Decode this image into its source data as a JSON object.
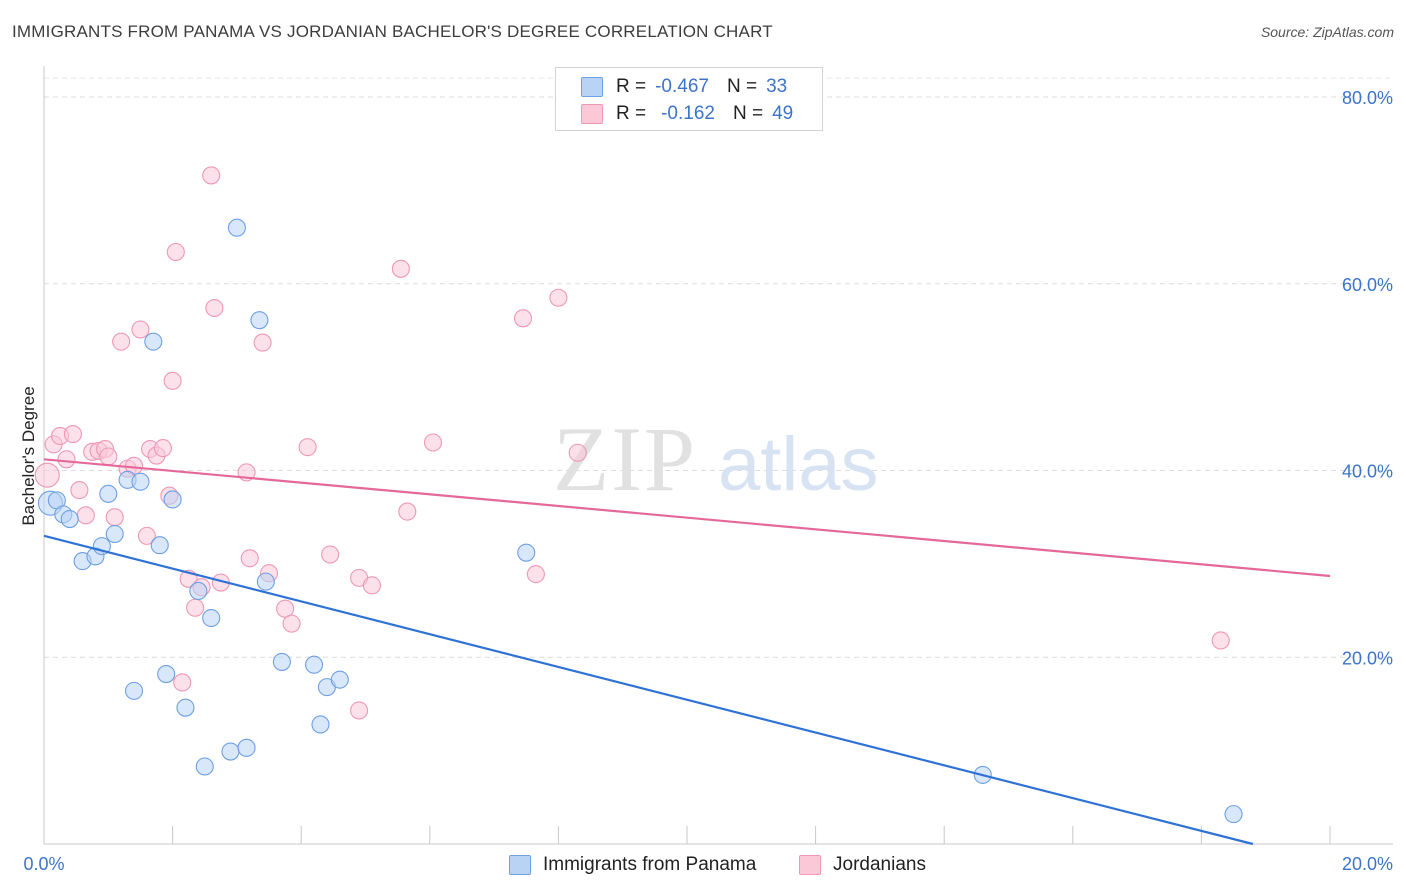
{
  "title": "IMMIGRANTS FROM PANAMA VS JORDANIAN BACHELOR'S DEGREE CORRELATION CHART",
  "source": "Source: ZipAtlas.com",
  "watermark": {
    "zip": "ZIP",
    "atlas": "atlas"
  },
  "legend": {
    "rows": [
      {
        "r_label": "R =",
        "r_value": "-0.467",
        "n_label": "N =",
        "n_value": "33",
        "color": "#6ea0e2"
      },
      {
        "r_label": "R =",
        "r_value": "-0.162",
        "n_label": "N =",
        "n_value": "49",
        "color": "#ee98b4"
      }
    ]
  },
  "chart_data": {
    "type": "scatter",
    "title": "IMMIGRANTS FROM PANAMA VS JORDANIAN BACHELOR'S DEGREE CORRELATION CHART",
    "xlabel": "",
    "ylabel": "Bachelor's Degree",
    "xlim": [
      0,
      20
    ],
    "ylim": [
      0,
      80
    ],
    "x_tick_labels": [
      "0.0%",
      "20.0%"
    ],
    "y_tick_labels": [
      "20.0%",
      "40.0%",
      "60.0%",
      "80.0%"
    ],
    "y_ticks": [
      20,
      40,
      60,
      80
    ],
    "grid": true,
    "legend_position": "top-center",
    "series": [
      {
        "name": "Immigrants from Panama",
        "color": "#6ea0e2",
        "fill": "#b9d3f5",
        "trend": {
          "x": [
            0,
            18.8
          ],
          "y": [
            33.0,
            0.0
          ],
          "color": "#2f72d6"
        },
        "points": [
          [
            0.1,
            36.5
          ],
          [
            0.2,
            36.8
          ],
          [
            0.3,
            35.3
          ],
          [
            0.4,
            34.8
          ],
          [
            0.6,
            30.3
          ],
          [
            0.8,
            30.8
          ],
          [
            0.9,
            31.9
          ],
          [
            1.0,
            37.5
          ],
          [
            1.1,
            33.2
          ],
          [
            1.3,
            39.0
          ],
          [
            1.4,
            16.4
          ],
          [
            1.5,
            38.8
          ],
          [
            1.7,
            53.8
          ],
          [
            1.8,
            32.0
          ],
          [
            1.9,
            18.2
          ],
          [
            2.0,
            36.9
          ],
          [
            2.2,
            14.6
          ],
          [
            2.4,
            27.1
          ],
          [
            2.5,
            8.3
          ],
          [
            2.6,
            24.2
          ],
          [
            2.9,
            9.9
          ],
          [
            3.0,
            66.0
          ],
          [
            3.15,
            10.3
          ],
          [
            3.35,
            56.1
          ],
          [
            3.45,
            28.1
          ],
          [
            3.7,
            19.5
          ],
          [
            4.2,
            19.2
          ],
          [
            4.3,
            12.8
          ],
          [
            4.4,
            16.8
          ],
          [
            4.6,
            17.6
          ],
          [
            7.5,
            31.2
          ],
          [
            14.6,
            7.4
          ],
          [
            18.5,
            3.2
          ]
        ]
      },
      {
        "name": "Jordanians",
        "color": "#ee98b4",
        "fill": "#fbc8d8",
        "trend": {
          "x": [
            0,
            20
          ],
          "y": [
            41.2,
            28.7
          ],
          "color": "#e4689a"
        },
        "points": [
          [
            0.05,
            39.5
          ],
          [
            0.15,
            42.8
          ],
          [
            0.25,
            43.7
          ],
          [
            0.35,
            41.2
          ],
          [
            0.45,
            43.9
          ],
          [
            0.55,
            37.9
          ],
          [
            0.65,
            35.2
          ],
          [
            0.75,
            42.0
          ],
          [
            0.85,
            42.1
          ],
          [
            0.95,
            42.3
          ],
          [
            1.0,
            41.5
          ],
          [
            1.1,
            35.0
          ],
          [
            1.2,
            53.8
          ],
          [
            1.3,
            40.2
          ],
          [
            1.4,
            40.5
          ],
          [
            1.5,
            55.1
          ],
          [
            1.6,
            33.0
          ],
          [
            1.65,
            42.3
          ],
          [
            1.75,
            41.6
          ],
          [
            1.85,
            42.4
          ],
          [
            1.95,
            37.3
          ],
          [
            2.0,
            49.6
          ],
          [
            2.05,
            63.4
          ],
          [
            2.15,
            17.3
          ],
          [
            2.25,
            28.4
          ],
          [
            2.35,
            25.3
          ],
          [
            2.45,
            27.5
          ],
          [
            2.6,
            71.6
          ],
          [
            2.65,
            57.4
          ],
          [
            2.75,
            28.0
          ],
          [
            3.15,
            39.8
          ],
          [
            3.2,
            30.6
          ],
          [
            3.4,
            53.7
          ],
          [
            3.5,
            29.0
          ],
          [
            3.75,
            25.2
          ],
          [
            3.85,
            23.6
          ],
          [
            4.1,
            42.5
          ],
          [
            4.45,
            31.0
          ],
          [
            4.9,
            14.3
          ],
          [
            4.9,
            28.5
          ],
          [
            5.1,
            27.7
          ],
          [
            5.55,
            61.6
          ],
          [
            5.65,
            35.6
          ],
          [
            6.05,
            43.0
          ],
          [
            7.45,
            56.3
          ],
          [
            7.65,
            28.9
          ],
          [
            8.0,
            58.5
          ],
          [
            8.3,
            41.9
          ],
          [
            18.3,
            21.8
          ]
        ]
      }
    ]
  }
}
